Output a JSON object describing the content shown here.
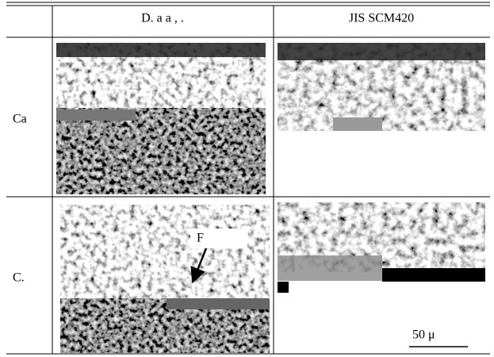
{
  "table": {
    "header": [
      "D. a    a   ,   .",
      "JIS SCM420"
    ],
    "rows": [
      {
        "label": "Ca"
      },
      {
        "label": "C."
      }
    ]
  },
  "annotation": "F",
  "scale_bar": "50 μ"
}
